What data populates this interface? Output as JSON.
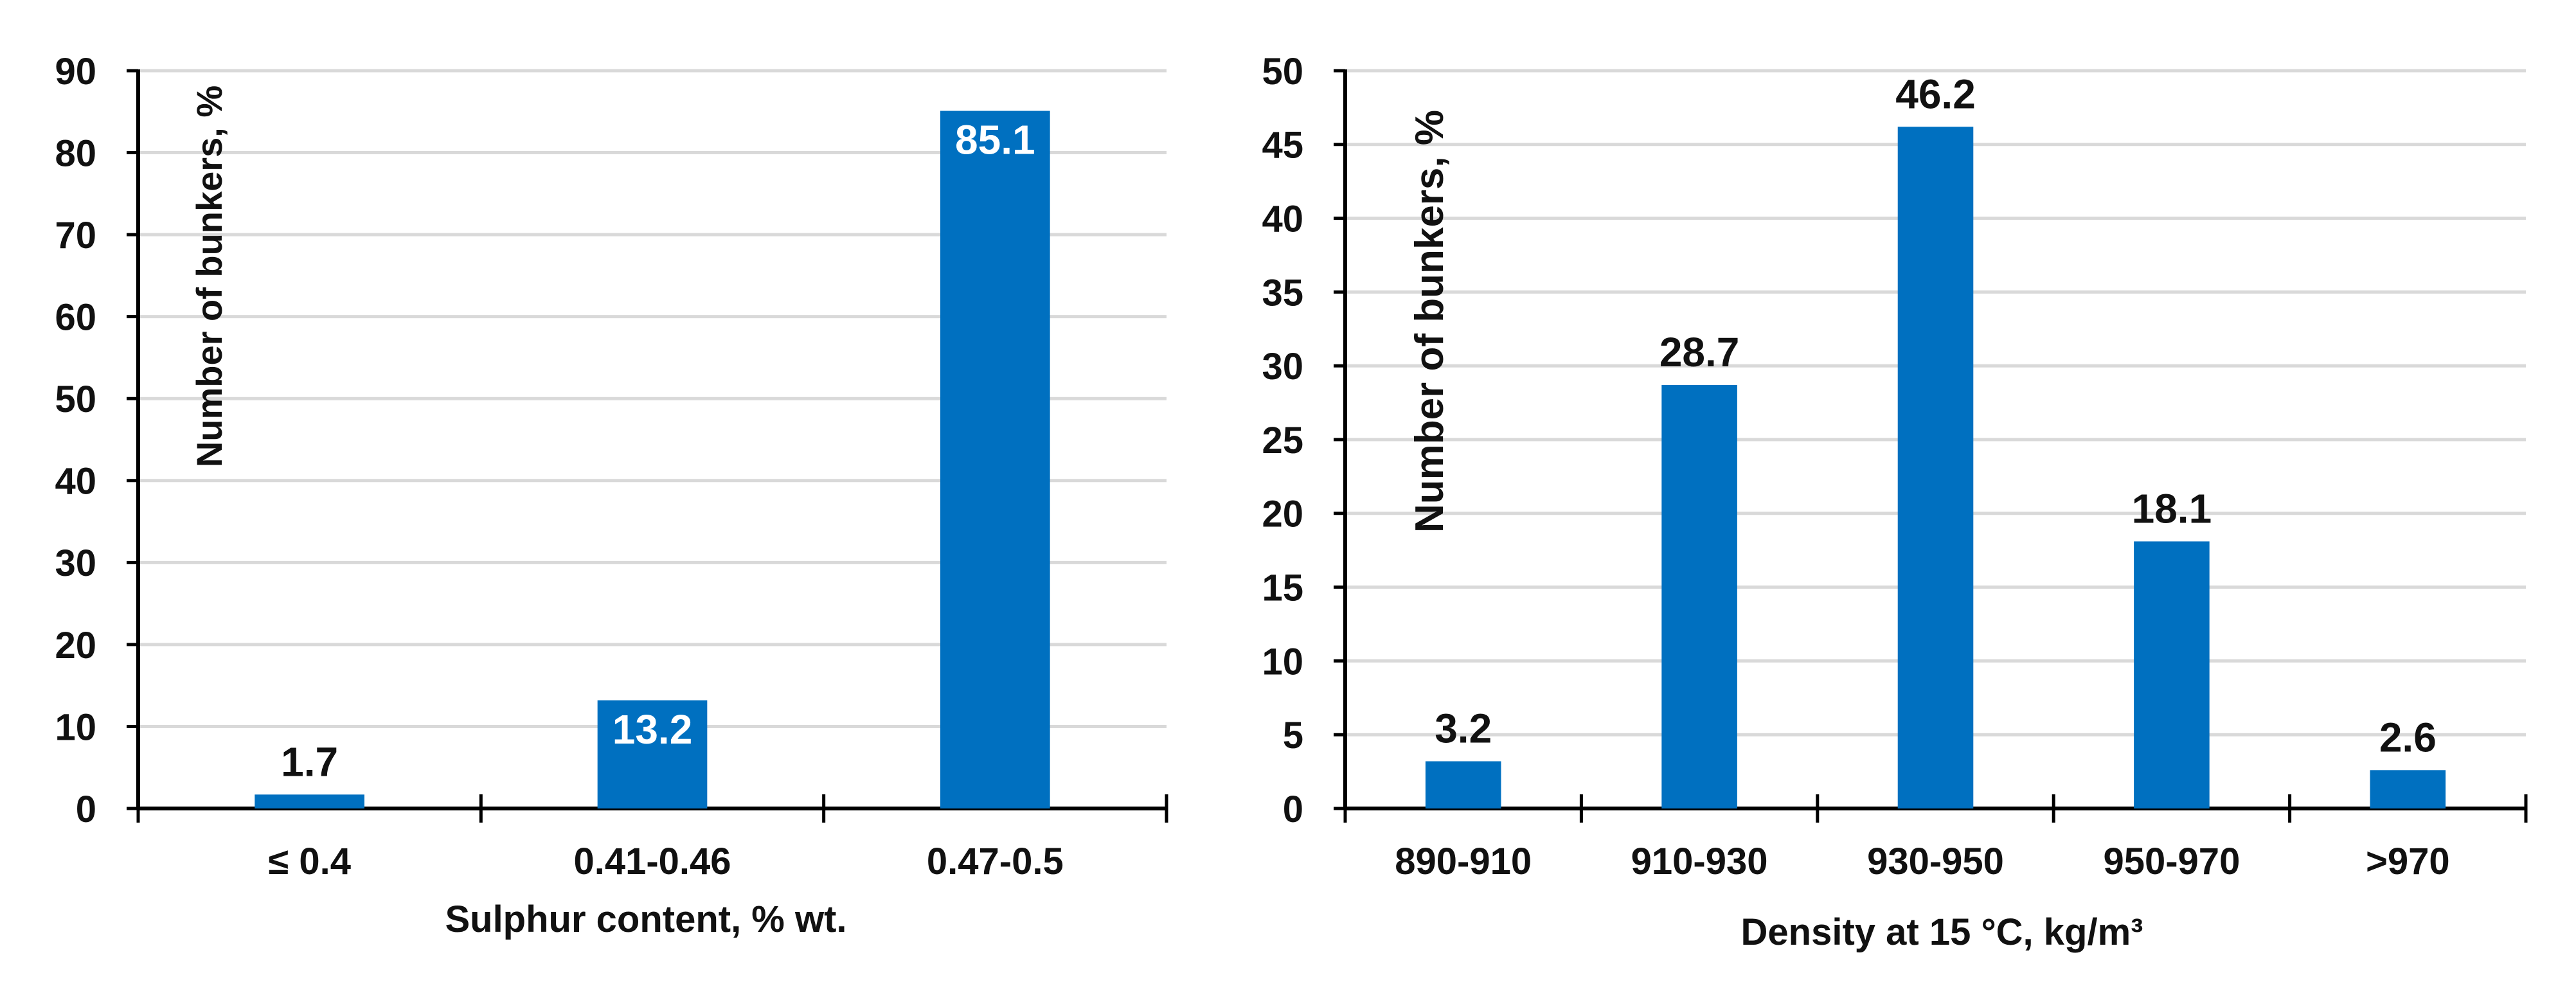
{
  "colors": {
    "bar": "#0070C0",
    "grid": "#D9D9D9",
    "axis": "#000000",
    "label_dark": "#111111",
    "label_inside": "#FFFFFF"
  },
  "chart_data": [
    {
      "type": "bar",
      "title": "",
      "xlabel": "Sulphur content, % wt.",
      "ylabel": "Number of bunkers, %",
      "categories": [
        "≤ 0.4",
        "0.41-0.46",
        "0.47-0.5"
      ],
      "values": [
        1.7,
        13.2,
        85.1
      ],
      "data_labels": [
        "1.7",
        "13.2",
        "85.1"
      ],
      "label_inside_bar": [
        false,
        true,
        true
      ],
      "ylim": [
        0,
        90
      ],
      "yticks": [
        0,
        10,
        20,
        30,
        40,
        50,
        60,
        70,
        80,
        90
      ],
      "grid": true,
      "legend": "none"
    },
    {
      "type": "bar",
      "title": "",
      "xlabel": "Density at 15 °C, kg/m³",
      "ylabel": "Number of bunkers, %",
      "categories": [
        "890-910",
        "910-930",
        "930-950",
        "950-970",
        ">970"
      ],
      "values": [
        3.2,
        28.7,
        46.2,
        18.1,
        2.6
      ],
      "data_labels": [
        "3.2",
        "28.7",
        "46.2",
        "18.1",
        "2.6"
      ],
      "label_inside_bar": [
        false,
        false,
        false,
        false,
        false
      ],
      "ylim": [
        0,
        50
      ],
      "yticks": [
        0,
        5,
        10,
        15,
        20,
        25,
        30,
        35,
        40,
        45,
        50
      ],
      "grid": true,
      "legend": "none"
    }
  ]
}
